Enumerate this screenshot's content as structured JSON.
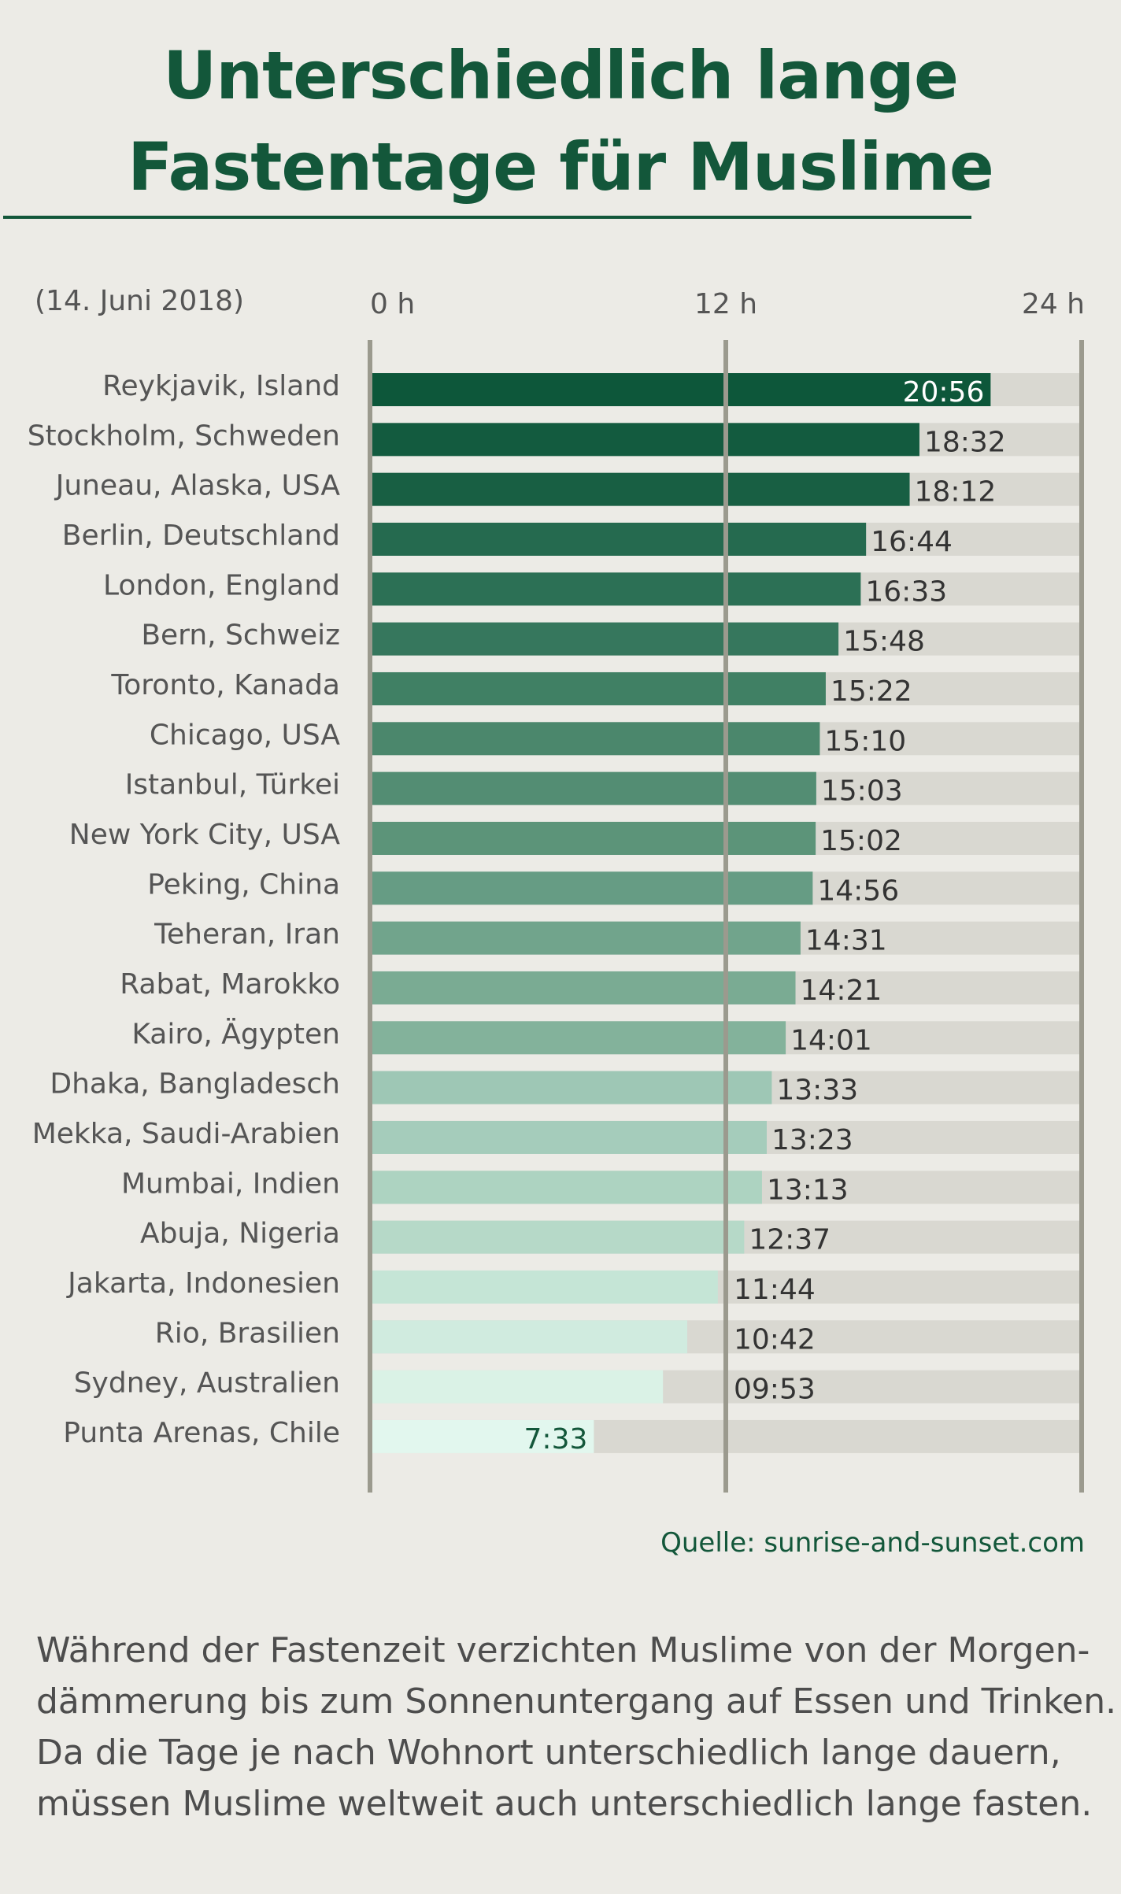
{
  "title_lines": [
    "Unterschiedlich lange",
    "Fastentage für Muslime"
  ],
  "date_note": "(14. Juni 2018)",
  "source": "Quelle: sunrise-and-sunset.com",
  "caption_lines": [
    "Während der Fastenzeit verzichten Muslime von der Morgen-",
    "dämmerung bis zum Sonnenuntergang auf Essen und Trinken.",
    "Da die Tage je nach Wohnort unterschiedlich lange dauern,",
    "müssen Muslime weltweit auch unterschiedlich lange fasten."
  ],
  "colors": {
    "title": "#13573a",
    "track": "#d9d8d1",
    "axis_line": "#9b9a8e",
    "dark_label": "#ffffff",
    "light_label": "#333333"
  },
  "chart_data": {
    "type": "bar",
    "orientation": "horizontal",
    "x_unit": "hours",
    "xlim": [
      0,
      24
    ],
    "ticks": [
      {
        "value": 0,
        "label": "0 h"
      },
      {
        "value": 12,
        "label": "12 h"
      },
      {
        "value": 24,
        "label": "24 h"
      }
    ],
    "categories": [
      "Reykjavik, Island",
      "Stockholm, Schweden",
      "Juneau, Alaska, USA",
      "Berlin, Deutschland",
      "London, England",
      "Bern, Schweiz",
      "Toronto, Kanada",
      "Chicago, USA",
      "Istanbul, Türkei",
      "New York City, USA",
      "Peking, China",
      "Teheran, Iran",
      "Rabat, Marokko",
      "Kairo, Ägypten",
      "Dhaka, Bangladesch",
      "Mekka, Saudi-Arabien",
      "Mumbai, Indien",
      "Abuja, Nigeria",
      "Jakarta, Indonesien",
      "Rio, Brasilien",
      "Sydney, Australien",
      "Punta Arenas, Chile"
    ],
    "values": [
      20.93,
      18.53,
      18.2,
      16.73,
      16.55,
      15.8,
      15.37,
      15.17,
      15.05,
      15.03,
      14.93,
      14.52,
      14.35,
      14.02,
      13.55,
      13.38,
      13.22,
      12.62,
      11.73,
      10.7,
      9.88,
      7.55
    ],
    "labels": [
      "20:56",
      "18:32",
      "18:12",
      "16:44",
      "16:33",
      "15:48",
      "15:22",
      "15:10",
      "15:03",
      "15:02",
      "14:56",
      "14:31",
      "14:21",
      "14:01",
      "13:33",
      "13:23",
      "13:13",
      "12:37",
      "11:44",
      "10:42",
      "09:53",
      "7:33"
    ],
    "bar_colors": [
      "#0d573a",
      "#135b3f",
      "#185f43",
      "#256a4f",
      "#2c7055",
      "#36775d",
      "#408064",
      "#4b876c",
      "#538d73",
      "#5c9479",
      "#669c84",
      "#71a48c",
      "#7aab93",
      "#83b29b",
      "#9ec7b5",
      "#a5ccbb",
      "#add3c1",
      "#b6d9c8",
      "#c5e5d6",
      "#d0ebdf",
      "#daf2e6",
      "#e2f7ee"
    ],
    "label_position": [
      "inside-end",
      "outside",
      "outside",
      "outside",
      "outside",
      "outside",
      "outside",
      "outside",
      "outside",
      "outside",
      "outside",
      "outside",
      "outside",
      "outside",
      "outside",
      "outside",
      "outside",
      "outside",
      "outside",
      "outside",
      "outside",
      "inside-end"
    ]
  }
}
